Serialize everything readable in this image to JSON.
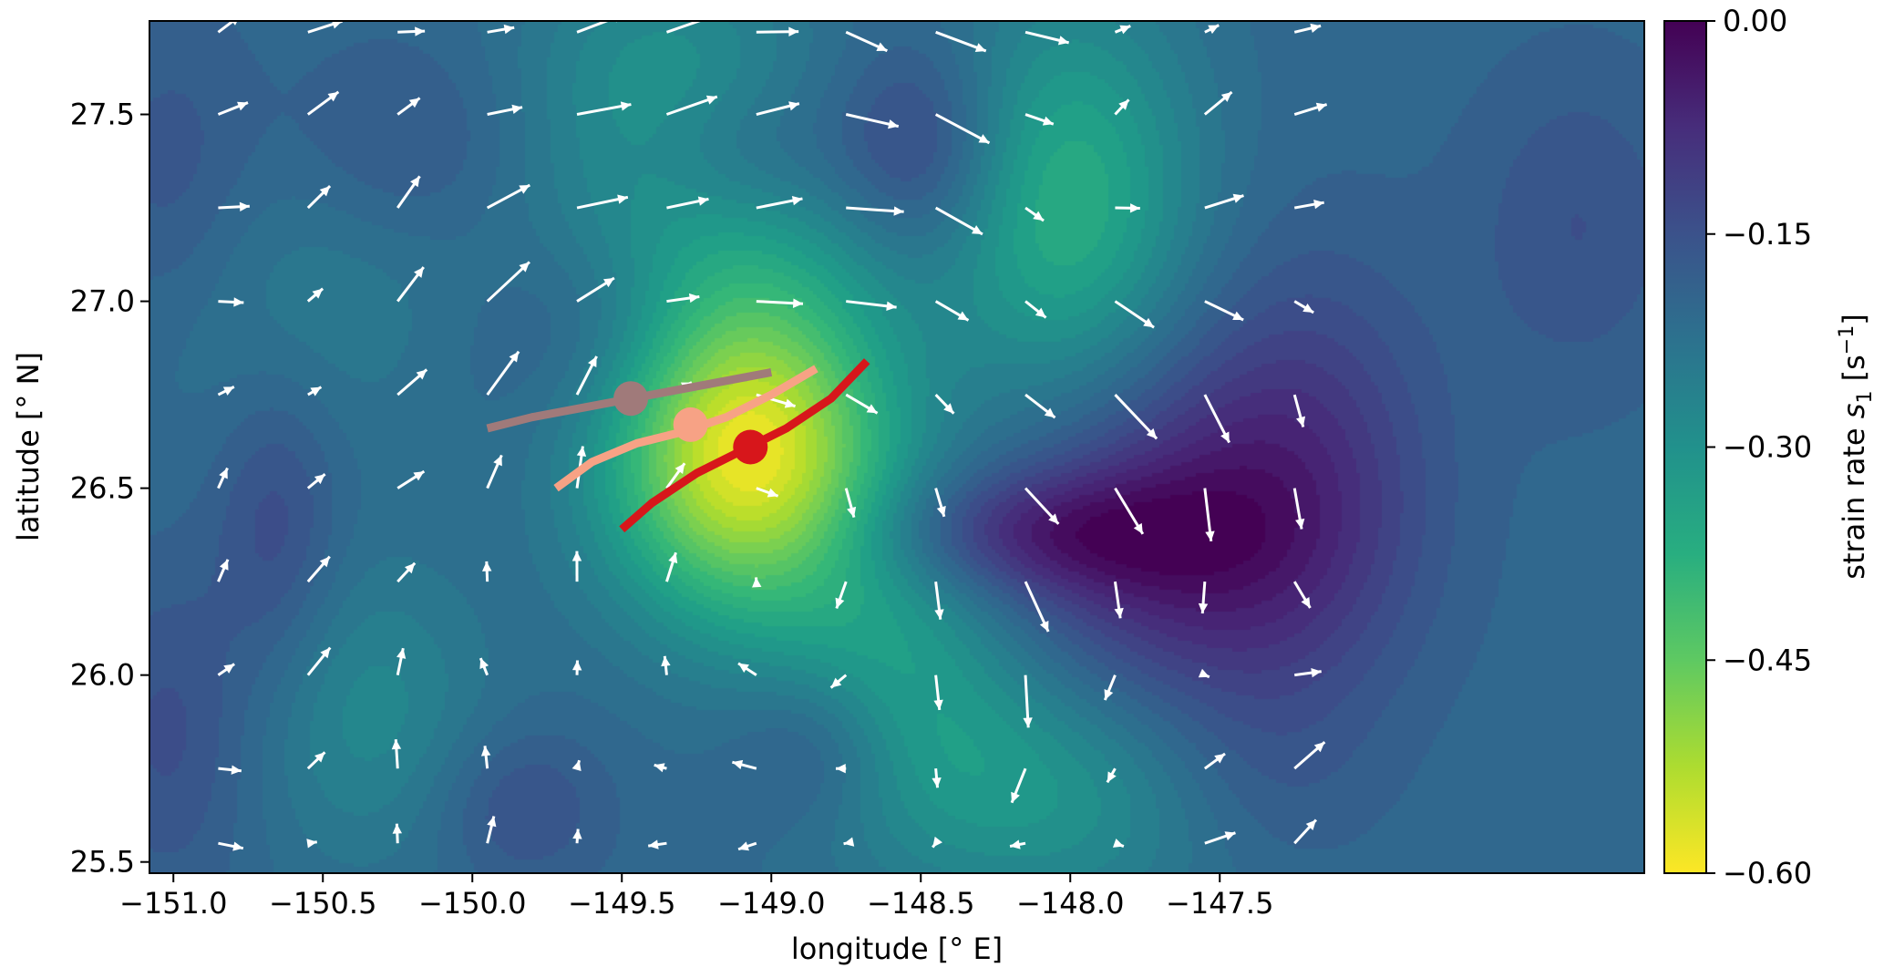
{
  "chart_data": {
    "type": "heatmap",
    "xlabel": "longitude [° E]",
    "ylabel": "latitude [° N]",
    "xlim": [
      -151.08,
      -146.08
    ],
    "ylim": [
      25.47,
      27.75
    ],
    "x_ticks": [
      -151.0,
      -150.5,
      -150.0,
      -149.5,
      -149.0,
      -148.5,
      -148.0,
      -147.5
    ],
    "x_tick_labels": [
      "−151.0",
      "−150.5",
      "−150.0",
      "−149.5",
      "−149.0",
      "−148.5",
      "−148.0",
      "−147.5"
    ],
    "y_ticks": [
      25.5,
      26.0,
      26.5,
      27.0,
      27.5
    ],
    "y_tick_labels": [
      "25.5",
      "26.0",
      "26.5",
      "27.0",
      "27.5"
    ],
    "colorbar": {
      "label": "strain rate s₁ [s⁻¹]",
      "label_main": "strain rate ",
      "label_var": "s",
      "label_var_sub": "1",
      "label_unit_open": " [s",
      "label_unit_sup": "−1",
      "label_unit_close": "]",
      "range": [
        -0.6,
        0.0
      ],
      "ticks": [
        0.0,
        -0.15,
        -0.3,
        -0.45,
        -0.6
      ],
      "tick_labels": [
        "0.00",
        "−0.15",
        "−0.30",
        "−0.45",
        "−0.60"
      ],
      "colormap": "viridis-reversed"
    },
    "strain_field": {
      "background": -0.2,
      "blobs": [
        {
          "lon": -149.08,
          "lat": 26.58,
          "amp": -0.38,
          "sx": 0.33,
          "sy": 0.3
        },
        {
          "lon": -149.25,
          "lat": 27.1,
          "amp": -0.1,
          "sx": 0.5,
          "sy": 0.25
        },
        {
          "lon": -149.35,
          "lat": 27.6,
          "amp": -0.1,
          "sx": 0.35,
          "sy": 0.25
        },
        {
          "lon": -148.0,
          "lat": 27.25,
          "amp": -0.17,
          "sx": 0.3,
          "sy": 0.4
        },
        {
          "lon": -148.0,
          "lat": 25.7,
          "amp": -0.12,
          "sx": 0.5,
          "sy": 0.25
        },
        {
          "lon": -148.55,
          "lat": 26.05,
          "amp": -0.1,
          "sx": 0.3,
          "sy": 0.3
        },
        {
          "lon": -150.35,
          "lat": 25.9,
          "amp": -0.08,
          "sx": 0.3,
          "sy": 0.3
        },
        {
          "lon": -150.6,
          "lat": 27.0,
          "amp": -0.05,
          "sx": 0.4,
          "sy": 0.3
        },
        {
          "lon": -147.65,
          "lat": 26.35,
          "amp": 0.15,
          "sx": 0.4,
          "sy": 0.35
        },
        {
          "lon": -147.2,
          "lat": 26.55,
          "amp": 0.08,
          "sx": 0.3,
          "sy": 0.4
        },
        {
          "lon": -148.15,
          "lat": 26.38,
          "amp": 0.12,
          "sx": 0.4,
          "sy": 0.12
        },
        {
          "lon": -148.5,
          "lat": 27.4,
          "amp": 0.1,
          "sx": 0.2,
          "sy": 0.2
        },
        {
          "lon": -149.1,
          "lat": 27.4,
          "amp": 0.06,
          "sx": 0.25,
          "sy": 0.15
        },
        {
          "lon": -149.6,
          "lat": 26.95,
          "amp": 0.08,
          "sx": 0.3,
          "sy": 0.2
        },
        {
          "lon": -150.2,
          "lat": 27.4,
          "amp": 0.05,
          "sx": 0.3,
          "sy": 0.2
        },
        {
          "lon": -151.0,
          "lat": 27.3,
          "amp": 0.05,
          "sx": 0.2,
          "sy": 0.3
        },
        {
          "lon": -151.0,
          "lat": 25.85,
          "amp": 0.06,
          "sx": 0.2,
          "sy": 0.3
        },
        {
          "lon": -150.65,
          "lat": 26.4,
          "amp": 0.07,
          "sx": 0.15,
          "sy": 0.3
        },
        {
          "lon": -148.85,
          "lat": 25.8,
          "amp": 0.07,
          "sx": 0.2,
          "sy": 0.15
        },
        {
          "lon": -149.85,
          "lat": 25.65,
          "amp": 0.06,
          "sx": 0.2,
          "sy": 0.15
        },
        {
          "lon": -147.4,
          "lat": 25.7,
          "amp": 0.05,
          "sx": 0.3,
          "sy": 0.2
        },
        {
          "lon": -146.3,
          "lat": 27.2,
          "amp": 0.05,
          "sx": 0.25,
          "sy": 0.3
        }
      ]
    },
    "velocity_grid": {
      "lons": [
        -150.85,
        -150.55,
        -150.25,
        -149.95,
        -149.65,
        -149.35,
        -149.05,
        -148.75,
        -148.45,
        -148.15,
        -147.85,
        -147.55,
        -147.25
      ],
      "lats": [
        27.72,
        27.5,
        27.25,
        27.0,
        26.75,
        26.5,
        26.25,
        26.0,
        25.75,
        25.55
      ],
      "note_units": "arrow components (u, v) in map degrees"
    },
    "tracks": [
      {
        "color": "#a07a7a",
        "lon": [
          -149.95,
          -149.8,
          -149.6,
          -149.4,
          -149.2,
          -149.0
        ],
        "lat": [
          26.66,
          26.69,
          26.72,
          26.75,
          26.78,
          26.81
        ],
        "marker": {
          "lon": -149.47,
          "lat": 26.74
        }
      },
      {
        "color": "#f7a285",
        "lon": [
          -149.72,
          -149.6,
          -149.45,
          -149.3,
          -149.15,
          -149.0,
          -148.85
        ],
        "lat": [
          26.5,
          26.57,
          26.62,
          26.65,
          26.69,
          26.75,
          26.82
        ],
        "marker": {
          "lon": -149.27,
          "lat": 26.67
        }
      },
      {
        "color": "#d7161b",
        "lon": [
          -149.5,
          -149.4,
          -149.25,
          -149.1,
          -148.95,
          -148.8,
          -148.68
        ],
        "lat": [
          26.39,
          26.46,
          26.54,
          26.6,
          26.66,
          26.74,
          26.84
        ],
        "marker": {
          "lon": -149.07,
          "lat": 26.61
        }
      }
    ]
  }
}
